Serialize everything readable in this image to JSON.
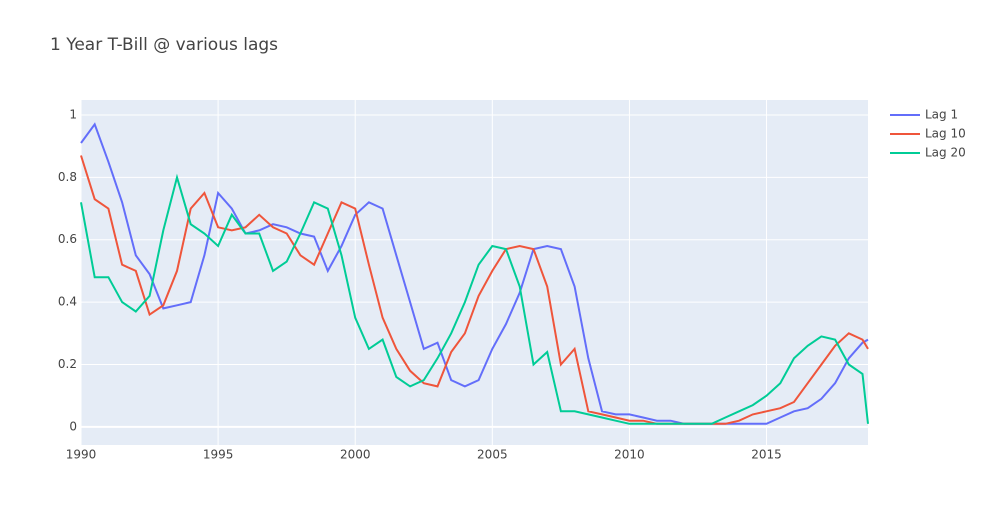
{
  "chart_data": {
    "type": "line",
    "title": "1 Year T-Bill @ various lags",
    "x": [
      1990,
      1990.5,
      1991,
      1991.5,
      1992,
      1992.5,
      1993,
      1993.5,
      1994,
      1994.5,
      1995,
      1995.5,
      1996,
      1996.5,
      1997,
      1997.5,
      1998,
      1998.5,
      1999,
      1999.5,
      2000,
      2000.5,
      2001,
      2001.5,
      2002,
      2002.5,
      2003,
      2003.5,
      2004,
      2004.5,
      2005,
      2005.5,
      2006,
      2006.5,
      2007,
      2007.5,
      2008,
      2008.5,
      2009,
      2009.5,
      2010,
      2010.5,
      2011,
      2011.5,
      2012,
      2012.5,
      2013,
      2013.5,
      2014,
      2014.5,
      2015,
      2015.5,
      2016,
      2016.5,
      2017,
      2017.5,
      2018,
      2018.5,
      2018.7
    ],
    "series": [
      {
        "name": "Lag 1",
        "color": "#636efa",
        "values": [
          0.91,
          0.97,
          0.85,
          0.72,
          0.55,
          0.49,
          0.38,
          0.39,
          0.4,
          0.55,
          0.75,
          0.7,
          0.62,
          0.63,
          0.65,
          0.64,
          0.62,
          0.61,
          0.5,
          0.58,
          0.68,
          0.72,
          0.7,
          0.55,
          0.4,
          0.25,
          0.27,
          0.15,
          0.13,
          0.15,
          0.25,
          0.33,
          0.43,
          0.57,
          0.58,
          0.57,
          0.45,
          0.22,
          0.05,
          0.04,
          0.04,
          0.03,
          0.02,
          0.02,
          0.01,
          0.01,
          0.01,
          0.01,
          0.01,
          0.01,
          0.01,
          0.03,
          0.05,
          0.06,
          0.09,
          0.14,
          0.22,
          0.27,
          0.28
        ]
      },
      {
        "name": "Lag 10",
        "color": "#ef553b",
        "values": [
          0.87,
          0.73,
          0.7,
          0.52,
          0.5,
          0.36,
          0.39,
          0.5,
          0.7,
          0.75,
          0.64,
          0.63,
          0.64,
          0.68,
          0.64,
          0.62,
          0.55,
          0.52,
          0.62,
          0.72,
          0.7,
          0.52,
          0.35,
          0.25,
          0.18,
          0.14,
          0.13,
          0.24,
          0.3,
          0.42,
          0.5,
          0.57,
          0.58,
          0.57,
          0.45,
          0.2,
          0.25,
          0.05,
          0.04,
          0.03,
          0.02,
          0.02,
          0.01,
          0.01,
          0.01,
          0.01,
          0.01,
          0.01,
          0.02,
          0.04,
          0.05,
          0.06,
          0.08,
          0.14,
          0.2,
          0.26,
          0.3,
          0.28,
          0.25
        ]
      },
      {
        "name": "Lag 20",
        "color": "#00cc96",
        "values": [
          0.72,
          0.48,
          0.48,
          0.4,
          0.37,
          0.42,
          0.63,
          0.8,
          0.65,
          0.62,
          0.58,
          0.68,
          0.62,
          0.62,
          0.5,
          0.53,
          0.62,
          0.72,
          0.7,
          0.55,
          0.35,
          0.25,
          0.28,
          0.16,
          0.13,
          0.15,
          0.22,
          0.3,
          0.4,
          0.52,
          0.58,
          0.57,
          0.45,
          0.2,
          0.24,
          0.05,
          0.05,
          0.04,
          0.03,
          0.02,
          0.01,
          0.01,
          0.01,
          0.01,
          0.01,
          0.01,
          0.01,
          0.03,
          0.05,
          0.07,
          0.1,
          0.14,
          0.22,
          0.26,
          0.29,
          0.28,
          0.2,
          0.17,
          0.01
        ]
      }
    ],
    "xlim": [
      1990,
      2018.7
    ],
    "xticks": [
      1990,
      1995,
      2000,
      2005,
      2010,
      2015
    ],
    "ylim": [
      -0.058,
      1.048
    ],
    "yticks": [
      0,
      0.2,
      0.4,
      0.6,
      0.8,
      1
    ],
    "grid": true
  }
}
